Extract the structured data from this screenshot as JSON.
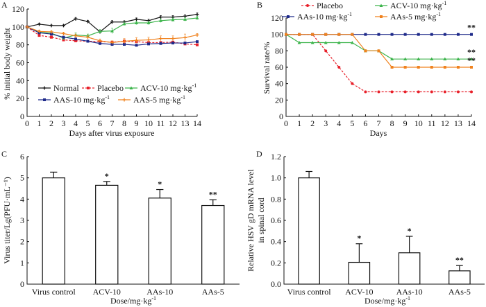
{
  "chart_data": [
    {
      "panel": "A",
      "type": "line",
      "title": "",
      "xlabel": "Days after virus exposure",
      "ylabel": "% initial body weight",
      "x": [
        0,
        1,
        2,
        3,
        4,
        5,
        6,
        7,
        8,
        9,
        10,
        11,
        12,
        13,
        14
      ],
      "xlim": [
        0,
        14
      ],
      "ylim": [
        0,
        120
      ],
      "yticks": [
        0,
        20,
        40,
        60,
        80,
        100,
        120
      ],
      "grid": false,
      "legend_position": "bottom-left inside",
      "series": [
        {
          "name": "Normal",
          "color": "#111111",
          "dash": false,
          "marker": "plus",
          "values": [
            100,
            103,
            101.5,
            101.5,
            109,
            106,
            94.5,
            105.5,
            105.5,
            108.5,
            107,
            111,
            111,
            112,
            114
          ],
          "errors": [
            0,
            0.8,
            0.8,
            0.8,
            1.5,
            1.2,
            1.5,
            1.5,
            1.2,
            1.5,
            1.5,
            1.5,
            1.5,
            1.5,
            1.5
          ]
        },
        {
          "name": "Placebo",
          "color": "#e8202a",
          "dash": true,
          "marker": "square",
          "values": [
            100,
            90.5,
            88.5,
            85.5,
            84.5,
            84,
            83.5,
            83,
            84,
            83.5,
            82.5,
            82.5,
            83,
            81,
            80
          ],
          "errors": [
            0,
            1.5,
            1.5,
            1,
            1,
            1,
            1,
            1,
            1.5,
            1.5,
            1,
            1,
            1,
            1,
            1
          ]
        },
        {
          "name": "ACV-10 mg·kg⁻¹",
          "label_main": "ACV-10 mg·kg",
          "label_sup": "-1",
          "color": "#3cb44b",
          "dash": false,
          "marker": "triangle",
          "values": [
            100,
            94,
            93,
            87.5,
            91,
            90,
            95,
            95.5,
            103.5,
            104.5,
            104.5,
            107,
            108,
            108.5,
            110
          ],
          "errors": [
            0,
            1.5,
            1.5,
            1.5,
            2.5,
            2,
            2,
            3,
            2,
            2,
            2,
            2,
            2,
            2,
            2
          ]
        },
        {
          "name": "AAS-10 mg·kg⁻¹",
          "label_main": "AAS-10 mg·kg",
          "label_sup": "-1",
          "color": "#1f2a8a",
          "dash": false,
          "marker": "square",
          "values": [
            100,
            93.5,
            92,
            88.5,
            86.5,
            84,
            81.5,
            80.5,
            80.5,
            79.5,
            81,
            81.5,
            82,
            82,
            83.5
          ],
          "errors": [
            0,
            1,
            1,
            1,
            1,
            1,
            1,
            1,
            1,
            1,
            1,
            1,
            1,
            1,
            1
          ]
        },
        {
          "name": "AAS-5 mg·kg⁻¹",
          "label_main": "AAS-5 mg·kg",
          "label_sup": "-1",
          "color": "#f0821e",
          "dash": false,
          "marker": "plus",
          "values": [
            100,
            95,
            94.5,
            92.5,
            90,
            88.5,
            84.5,
            82.5,
            84,
            85,
            85.5,
            87,
            87,
            88,
            91
          ],
          "errors": [
            0,
            1.5,
            1.5,
            1.5,
            2,
            2,
            2,
            2,
            3,
            3,
            3,
            3,
            3,
            4,
            1.5
          ]
        }
      ]
    },
    {
      "panel": "B",
      "type": "line",
      "title": "",
      "xlabel": "Days",
      "ylabel": "Survival rate/%",
      "x": [
        0,
        1,
        2,
        3,
        4,
        5,
        6,
        7,
        8,
        9,
        10,
        11,
        12,
        13,
        14
      ],
      "xlim": [
        0,
        14
      ],
      "ylim": [
        0,
        120
      ],
      "yticks": [
        0,
        20,
        40,
        60,
        80,
        100,
        120
      ],
      "grid": false,
      "legend_position": "top",
      "series": [
        {
          "name": "Placebo",
          "color": "#e8202a",
          "dash": true,
          "marker": "circle",
          "values": [
            100,
            100,
            100,
            80,
            60,
            40,
            30,
            30,
            30,
            30,
            30,
            30,
            30,
            30,
            30
          ]
        },
        {
          "name": "ACV-10 mg·kg⁻¹",
          "label_main": "ACV-10 mg·kg",
          "label_sup": "-1",
          "color": "#3cb44b",
          "dash": false,
          "marker": "triangle",
          "values": [
            100,
            90,
            90,
            90,
            90,
            90,
            80,
            80,
            70,
            70,
            70,
            70,
            70,
            70,
            70
          ],
          "significance": "**"
        },
        {
          "name": "AAs-10 mg·kg⁻¹",
          "label_main": "AAs-10 mg·kg",
          "label_sup": "-1",
          "color": "#1f2a8a",
          "dash": false,
          "marker": "square",
          "values": [
            100,
            100,
            100,
            100,
            100,
            100,
            100,
            100,
            100,
            100,
            100,
            100,
            100,
            100,
            100
          ],
          "significance": "**"
        },
        {
          "name": "AAs-5 mg·kg⁻¹",
          "label_main": "AAs-5 mg·kg",
          "label_sup": "-1",
          "color": "#f0821e",
          "dash": false,
          "marker": "square",
          "values": [
            100,
            100,
            100,
            100,
            100,
            100,
            80,
            80,
            60,
            60,
            60,
            60,
            60,
            60,
            60
          ],
          "significance": "**"
        }
      ]
    },
    {
      "panel": "C",
      "type": "bar",
      "title": "",
      "xlabel_main": "Dose/mg·kg",
      "xlabel_sup": "-1",
      "ylabel": "Virus titer/Lg(PFU·mL⁻¹)",
      "categories": [
        "Virus control",
        "ACV-10",
        "AAs-10",
        "AAs-5"
      ],
      "values": [
        5.0,
        4.65,
        4.05,
        3.7
      ],
      "errors": [
        0.27,
        0.18,
        0.4,
        0.27
      ],
      "significance": [
        "",
        "*",
        "*",
        "**"
      ],
      "ylim": [
        0,
        6
      ],
      "yticks": [
        0,
        1,
        2,
        3,
        4,
        5,
        6
      ],
      "grid": false
    },
    {
      "panel": "D",
      "type": "bar",
      "title": "",
      "xlabel_main": "Dose/mg·kg",
      "xlabel_sup": "-1",
      "ylabel_line1": "Relative HSV gD mRNA level",
      "ylabel_line2": "in spinal cord",
      "categories": [
        "Virus control",
        "ACV-10",
        "AAs-10",
        "AAs-5"
      ],
      "values": [
        1.0,
        0.205,
        0.295,
        0.125
      ],
      "errors": [
        0.06,
        0.175,
        0.155,
        0.05
      ],
      "significance": [
        "",
        "*",
        "*",
        "**"
      ],
      "ylim": [
        0,
        1.2
      ],
      "yticks": [
        "0.0",
        "0.2",
        "0.4",
        "0.6",
        "0.8",
        "1.0",
        "1.2"
      ],
      "grid": false
    }
  ],
  "panel_labels": [
    "A",
    "B",
    "C",
    "D"
  ]
}
